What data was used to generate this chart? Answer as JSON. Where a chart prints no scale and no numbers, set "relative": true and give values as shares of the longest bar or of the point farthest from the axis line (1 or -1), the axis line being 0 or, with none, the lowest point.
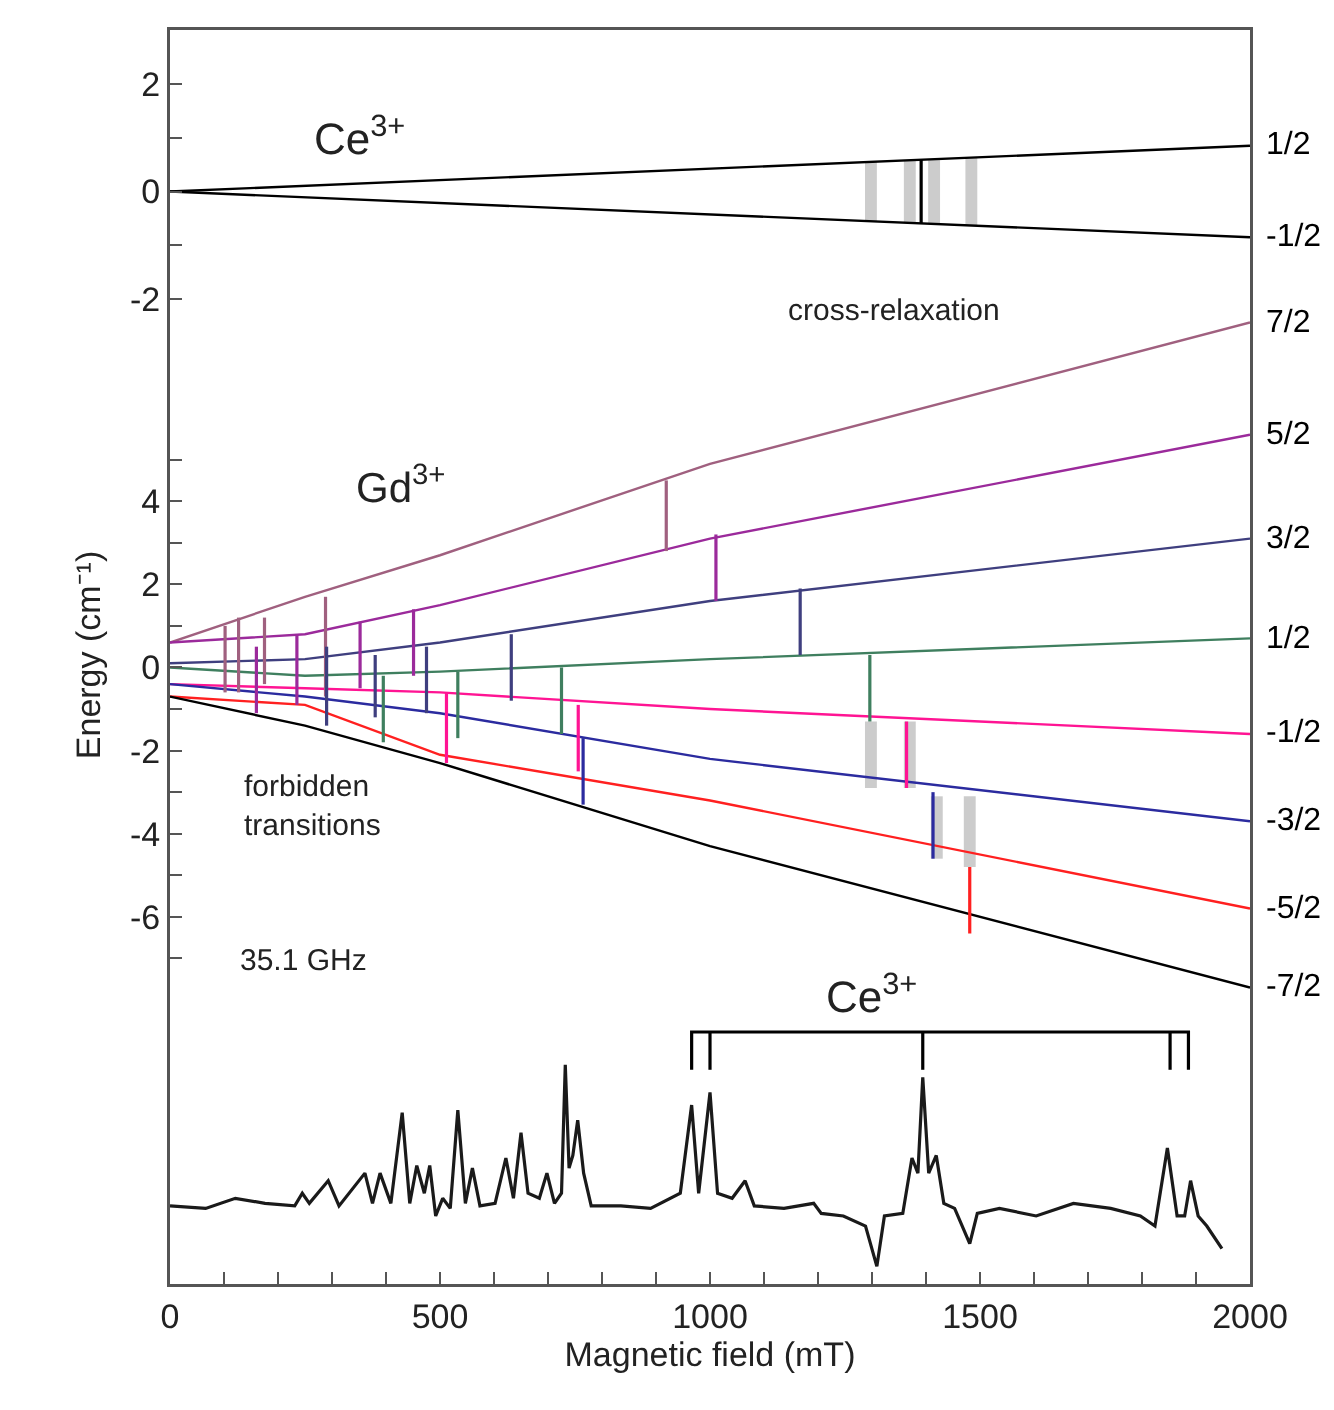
{
  "chart_data": [
    {
      "type": "line",
      "xlim": [
        0,
        2000
      ],
      "ylim": [
        -2.2,
        3
      ],
      "yticks": [
        -2,
        {
          "value": -1,
          "label": null
        },
        0,
        {
          "value": 1,
          "label": null
        },
        2
      ],
      "tick_labels": "y",
      "annotations": [
        "Ce$^{3+}$"
      ],
      "series": [
        {
          "name": "1/2",
          "color": "#000000",
          "x": [
            0,
            2000
          ],
          "values": [
            0,
            0.85
          ]
        },
        {
          "name": "-1/2",
          "color": "#000000",
          "x": [
            0,
            2000
          ],
          "values": [
            0,
            -0.85
          ]
        },
        {
          "type": "bar",
          "color": "#cccccc",
          "x": [
            1298,
            1370,
            1415,
            1484
          ],
          "base": [
            -0.55,
            -0.58,
            -0.6,
            -0.63
          ],
          "values": [
            1.1,
            1.16,
            1.2,
            1.26
          ]
        },
        {
          "color": "#000000",
          "x": [
            1391,
            1391
          ],
          "values": [
            -0.59,
            0.59
          ]
        }
      ]
    },
    {
      "type": "line",
      "xlim": [
        0,
        2000
      ],
      "ylim": [
        -8,
        8.6
      ],
      "yticks": [
        {
          "value": -7,
          "label": null
        },
        -6,
        {
          "value": -5,
          "label": null
        },
        -4,
        {
          "value": -3,
          "label": null
        },
        -2,
        {
          "value": -1,
          "label": null
        },
        0,
        {
          "value": 1,
          "label": null
        },
        2,
        {
          "value": 3,
          "label": null
        },
        4,
        {
          "value": 5,
          "label": null
        }
      ],
      "tick_labels": "y",
      "ylabel": "Energy (cm⁻¹)",
      "annotations": [
        "Gd$^{3+}$",
        "cross-relaxation",
        "forbidden\ntransitions"
      ],
      "series": [
        {
          "type": "bar",
          "color": "#cccccc",
          "x": [
            1298,
            1370,
            1420,
            1481
          ],
          "base": [
            -2.9,
            -2.9,
            -4.6,
            -4.8
          ],
          "values": [
            1.6,
            1.6,
            1.5,
            1.7
          ]
        },
        {
          "name": "7/2",
          "color": "#a0607f",
          "x": [
            0,
            250,
            500,
            1000,
            2000
          ],
          "values": [
            0.6,
            1.7,
            2.7,
            4.9,
            8.3
          ]
        },
        {
          "name": "5/2",
          "color": "#9b2a9b",
          "x": [
            0,
            250,
            500,
            1000,
            2000
          ],
          "values": [
            0.6,
            0.8,
            1.5,
            3.1,
            5.6
          ]
        },
        {
          "name": "3/2",
          "color": "#3f3f7f",
          "x": [
            0,
            250,
            500,
            1000,
            2000
          ],
          "values": [
            0.1,
            0.2,
            0.6,
            1.6,
            3.1
          ]
        },
        {
          "name": "1/2",
          "color": "#3f7f5f",
          "x": [
            0,
            250,
            500,
            1000,
            2000
          ],
          "values": [
            0.0,
            -0.2,
            -0.1,
            0.2,
            0.7
          ]
        },
        {
          "name": "-1/2",
          "color": "#ff1493",
          "x": [
            0,
            250,
            500,
            1000,
            2000
          ],
          "values": [
            -0.4,
            -0.5,
            -0.6,
            -1.0,
            -1.6
          ]
        },
        {
          "name": "-3/2",
          "color": "#2b2b9f",
          "x": [
            0,
            250,
            500,
            1000,
            2000
          ],
          "values": [
            -0.4,
            -0.7,
            -1.1,
            -2.2,
            -3.7
          ]
        },
        {
          "name": "-5/2",
          "color": "#ff2020",
          "x": [
            0,
            250,
            500,
            1000,
            2000
          ],
          "values": [
            -0.7,
            -0.9,
            -2.1,
            -3.2,
            -5.8
          ]
        },
        {
          "name": "-7/2",
          "color": "#000000",
          "x": [
            0,
            250,
            500,
            1000,
            2000
          ],
          "values": [
            -0.7,
            -1.4,
            -2.3,
            -4.3,
            -7.7
          ]
        },
        {
          "color": "#a0607f",
          "x": [
            102,
            102,
            null,
            127,
            127,
            null,
            175,
            175,
            null,
            288,
            288,
            null,
            919,
            919
          ],
          "values": [
            1.0,
            -0.6,
            null,
            1.2,
            -0.6,
            null,
            1.2,
            -0.4,
            null,
            1.7,
            -0.7,
            null,
            4.5,
            2.8
          ]
        },
        {
          "color": "#9b2a9b",
          "x": [
            160,
            160,
            null,
            235,
            235,
            null,
            352,
            352,
            null,
            451,
            451,
            null,
            1011,
            1011
          ],
          "values": [
            0.5,
            -1.1,
            null,
            0.8,
            -0.9,
            null,
            1.1,
            -0.5,
            null,
            1.4,
            -0.2,
            null,
            3.2,
            1.6
          ]
        },
        {
          "color": "#3f3f7f",
          "x": [
            290,
            290,
            null,
            380,
            380,
            null,
            475,
            475,
            null,
            632,
            632,
            null,
            1167,
            1167
          ],
          "values": [
            0.5,
            -1.4,
            null,
            0.3,
            -1.2,
            null,
            0.5,
            -1.1,
            null,
            0.8,
            -0.8,
            null,
            1.9,
            0.3
          ]
        },
        {
          "color": "#3f7f5f",
          "x": [
            395,
            395,
            null,
            533,
            533,
            null,
            725,
            725,
            null,
            1296,
            1296
          ],
          "values": [
            -0.2,
            -1.8,
            null,
            -0.1,
            -1.7,
            null,
            0.0,
            -1.6,
            null,
            0.3,
            -1.3
          ]
        },
        {
          "color": "#ff1493",
          "x": [
            512,
            512,
            null,
            756,
            756,
            null,
            1364,
            1364
          ],
          "values": [
            -0.6,
            -2.3,
            null,
            -0.9,
            -2.5,
            null,
            -1.3,
            -2.9
          ]
        },
        {
          "color": "#2b2b9f",
          "x": [
            765,
            765,
            null,
            1413,
            1413
          ],
          "values": [
            -1.7,
            -3.3,
            null,
            -3.0,
            -4.6
          ]
        },
        {
          "color": "#ff2020",
          "x": [
            1481,
            1481
          ],
          "values": [
            -4.8,
            -6.4
          ]
        }
      ]
    },
    {
      "type": "line",
      "relative": true,
      "xlim": [
        0,
        2000
      ],
      "xticks": [
        0,
        {
          "value": 100,
          "label": null
        },
        {
          "value": 200,
          "label": null
        },
        {
          "value": 300,
          "label": null
        },
        {
          "value": 400,
          "label": null
        },
        500,
        {
          "value": 600,
          "label": null
        },
        {
          "value": 700,
          "label": null
        },
        {
          "value": 800,
          "label": null
        },
        {
          "value": 900,
          "label": null
        },
        1000,
        {
          "value": 1100,
          "label": null
        },
        {
          "value": 1200,
          "label": null
        },
        {
          "value": 1300,
          "label": null
        },
        {
          "value": 1400,
          "label": null
        },
        1500,
        {
          "value": 1600,
          "label": null
        },
        {
          "value": 1700,
          "label": null
        },
        {
          "value": 1800,
          "label": null
        },
        {
          "value": 1900,
          "label": null
        },
        2000
      ],
      "xlabel": "Magnetic field (mT)",
      "tick_labels": "x",
      "annotations": [
        "35.1 GHz",
        "Ce$^{3+}$"
      ],
      "series": [
        {
          "color": "#1a1a1a",
          "x": [
            0,
            66,
            121,
            176,
            231,
            245,
            258,
            293,
            313,
            361,
            375,
            389,
            409,
            430,
            444,
            457,
            471,
            481,
            492,
            505,
            519,
            533,
            547,
            560,
            574,
            602,
            622,
            636,
            650,
            663,
            684,
            698,
            712,
            725,
            732,
            739,
            746,
            755,
            766,
            780,
            835,
            890,
            945,
            966,
            979,
            1000,
            1014,
            1041,
            1065,
            1082,
            1137,
            1192,
            1206,
            1247,
            1288,
            1309,
            1323,
            1357,
            1374,
            1385,
            1394,
            1405,
            1419,
            1433,
            1453,
            1481,
            1495,
            1536,
            1604,
            1673,
            1742,
            1797,
            1824,
            1847,
            1865,
            1879,
            1890,
            1904,
            1920,
            1948
          ],
          "values": [
            0.31,
            0.3,
            0.34,
            0.32,
            0.31,
            0.36,
            0.32,
            0.41,
            0.31,
            0.44,
            0.32,
            0.44,
            0.32,
            0.68,
            0.32,
            0.47,
            0.36,
            0.47,
            0.27,
            0.34,
            0.3,
            0.69,
            0.32,
            0.46,
            0.31,
            0.32,
            0.5,
            0.34,
            0.6,
            0.36,
            0.34,
            0.44,
            0.32,
            0.36,
            0.87,
            0.46,
            0.51,
            0.65,
            0.44,
            0.31,
            0.31,
            0.3,
            0.36,
            0.71,
            0.36,
            0.76,
            0.36,
            0.34,
            0.41,
            0.31,
            0.3,
            0.32,
            0.28,
            0.27,
            0.23,
            0.07,
            0.27,
            0.28,
            0.5,
            0.44,
            0.82,
            0.44,
            0.51,
            0.32,
            0.3,
            0.16,
            0.28,
            0.3,
            0.27,
            0.32,
            0.3,
            0.27,
            0.23,
            0.54,
            0.27,
            0.27,
            0.41,
            0.27,
            0.23,
            0.14
          ]
        },
        {
          "color": "#000000",
          "x": [
            966,
            966,
            1886,
            1886,
            null,
            1000,
            1000,
            null,
            1394,
            1394,
            null,
            1852,
            1852
          ],
          "values": [
            0.85,
            1,
            1,
            0.85,
            null,
            0.85,
            1,
            null,
            0.85,
            1,
            null,
            0.85,
            1
          ]
        }
      ]
    }
  ]
}
